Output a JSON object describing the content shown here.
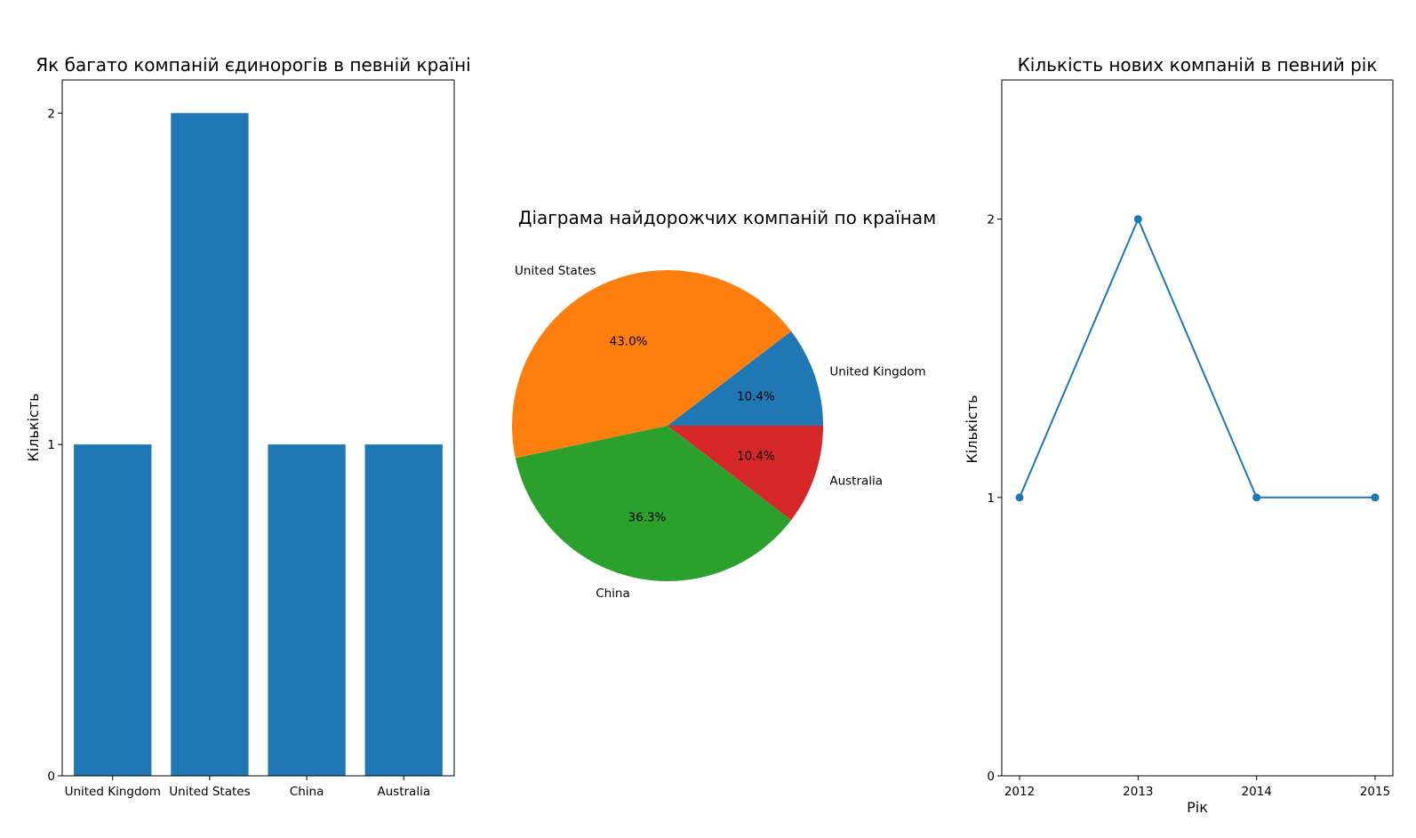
{
  "chart_data": [
    {
      "type": "bar",
      "title": "Як багато компаній єдинорогів в певній країні",
      "xlabel": "",
      "ylabel": "Кількість",
      "categories": [
        "United Kingdom",
        "United States",
        "China",
        "Australia"
      ],
      "values": [
        1,
        2,
        1,
        1
      ],
      "ylim": [
        0,
        2.1
      ],
      "yticks": [
        0,
        1,
        2
      ],
      "grid": false,
      "colors": {
        "bar": "#1f77b4"
      }
    },
    {
      "type": "pie",
      "title": "Діаграма найдорожчих компаній по країнам",
      "labels": [
        "United Kingdom",
        "United States",
        "China",
        "Australia"
      ],
      "values": [
        10.4,
        43.0,
        36.3,
        10.4
      ],
      "pct_labels": [
        "10.4%",
        "43.0%",
        "36.3%",
        "10.4%"
      ],
      "colors": [
        "#1f77b4",
        "#ff7f0e",
        "#2ca02c",
        "#d62728"
      ]
    },
    {
      "type": "line",
      "title": "Кількість нових компаній в певний рік",
      "xlabel": "Рік",
      "ylabel": "Кількість",
      "x": [
        2012,
        2013,
        2014,
        2015
      ],
      "values": [
        1,
        2,
        1,
        1
      ],
      "xticks": [
        "2012",
        "2013",
        "2014",
        "2015"
      ],
      "yticks": [
        0,
        1,
        2
      ],
      "xlim": [
        2011.85,
        2015.15
      ],
      "ylim": [
        0,
        2.5
      ],
      "grid": false,
      "marker": "circle",
      "colors": {
        "line": "#1f77b4"
      }
    }
  ]
}
